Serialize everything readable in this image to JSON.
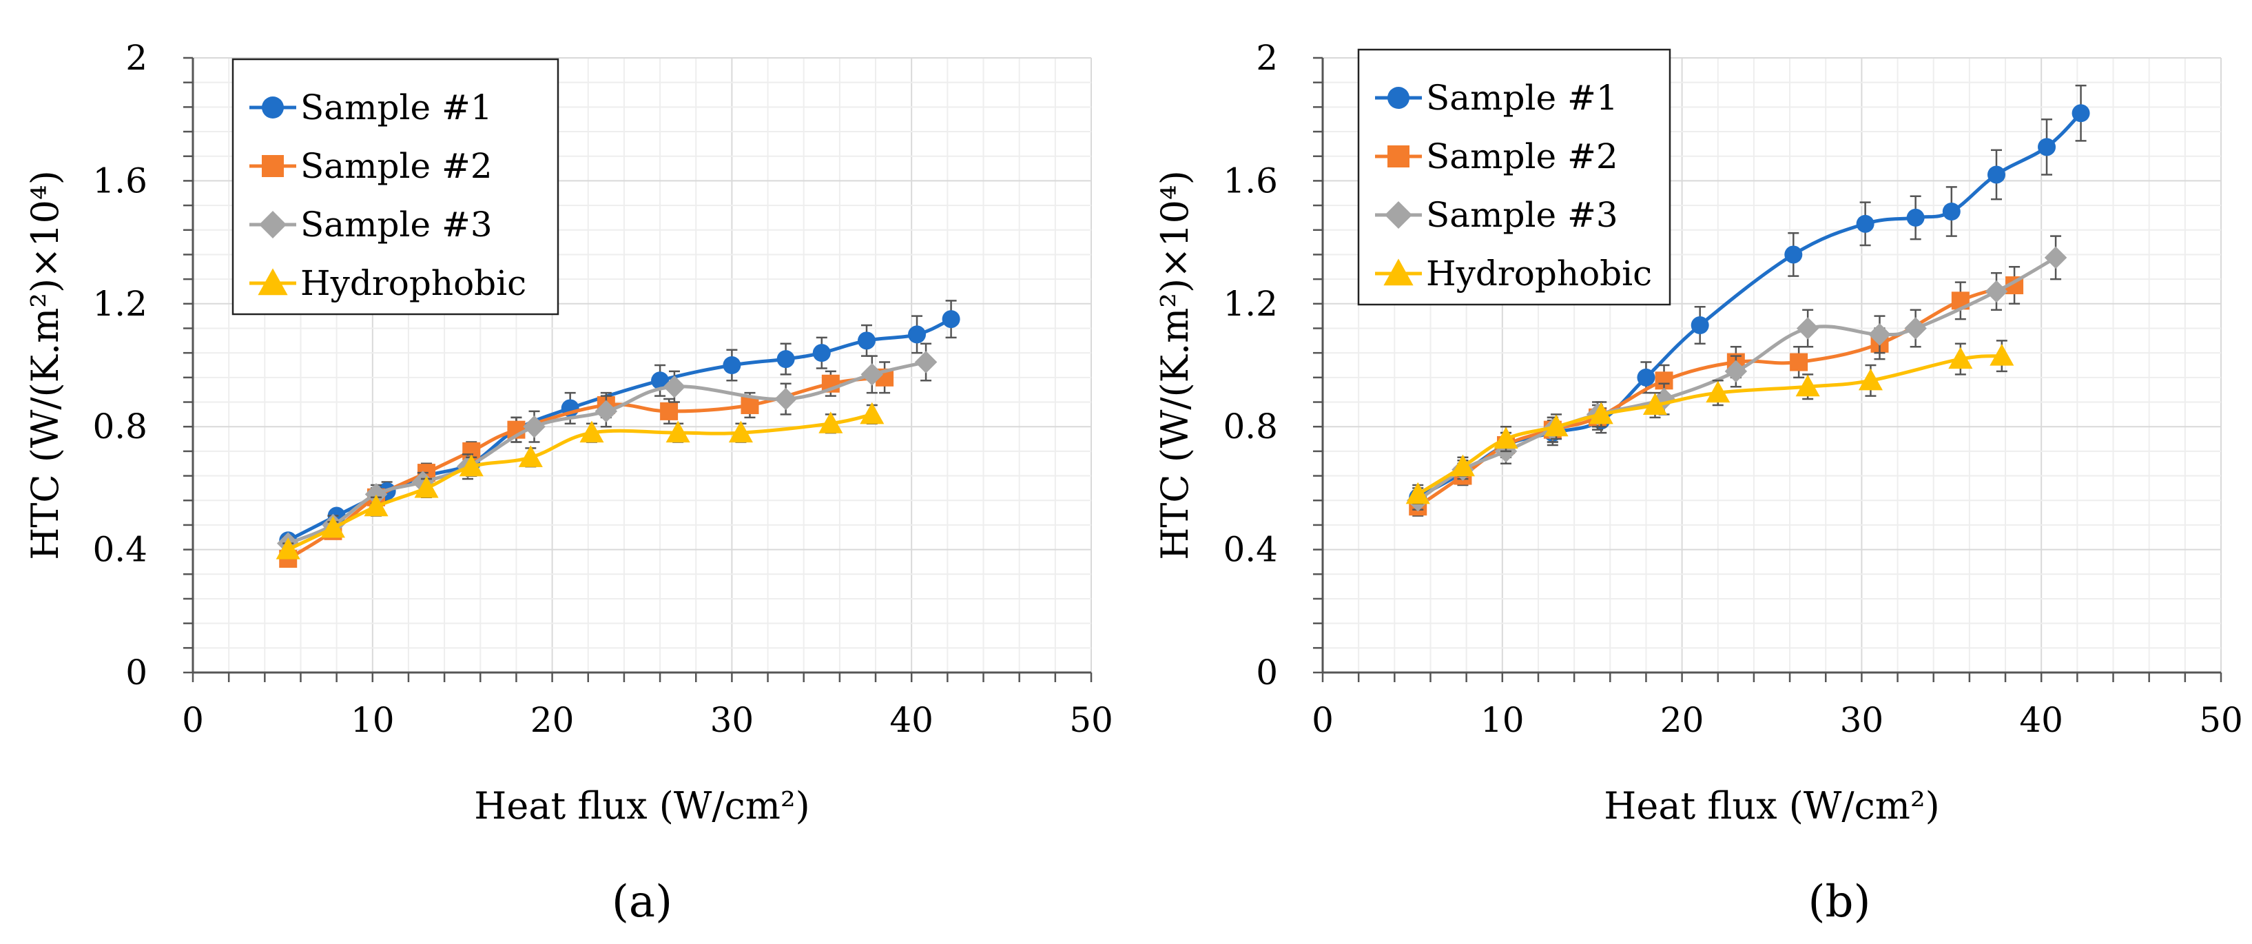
{
  "chart_data": [
    {
      "type": "line",
      "panel_label": "(a)",
      "xlabel": "Heat flux (W/cm²)",
      "ylabel": "HTC (W/(K.m²)×10⁴)",
      "xlim": [
        0,
        50
      ],
      "ylim": [
        0,
        2
      ],
      "xticks": [
        "0",
        "10",
        "20",
        "30",
        "40",
        "50"
      ],
      "yticks": [
        "0",
        "0.4",
        "0.8",
        "1.2",
        "1.6",
        "2"
      ],
      "legend_position": "top-left",
      "series": [
        {
          "name": "Sample #1",
          "color": "#1f6fc8",
          "marker": "circle",
          "x": [
            5.3,
            8.0,
            10.8,
            13.0,
            15.5,
            18.0,
            21.0,
            26.0,
            30.0,
            33.0,
            35.0,
            37.5,
            40.3,
            42.2
          ],
          "y": [
            0.43,
            0.51,
            0.59,
            0.64,
            0.68,
            0.79,
            0.86,
            0.95,
            1.0,
            1.02,
            1.04,
            1.08,
            1.1,
            1.15
          ],
          "err": [
            0.02,
            0.02,
            0.03,
            0.03,
            0.04,
            0.04,
            0.05,
            0.05,
            0.05,
            0.05,
            0.05,
            0.05,
            0.06,
            0.06
          ]
        },
        {
          "name": "Sample #2",
          "color": "#f47c2c",
          "marker": "square",
          "x": [
            5.3,
            7.8,
            10.2,
            13.0,
            15.5,
            18.0,
            23.0,
            26.5,
            31.0,
            35.5,
            38.5
          ],
          "y": [
            0.37,
            0.46,
            0.57,
            0.65,
            0.72,
            0.79,
            0.87,
            0.85,
            0.87,
            0.94,
            0.96
          ],
          "err": [
            0.02,
            0.02,
            0.03,
            0.03,
            0.03,
            0.04,
            0.04,
            0.04,
            0.04,
            0.04,
            0.05
          ]
        },
        {
          "name": "Sample #3",
          "color": "#a5a5a5",
          "marker": "diamond",
          "x": [
            5.3,
            7.8,
            10.2,
            12.8,
            15.3,
            19.0,
            23.0,
            26.8,
            33.0,
            37.8,
            40.8
          ],
          "y": [
            0.42,
            0.48,
            0.58,
            0.62,
            0.67,
            0.8,
            0.85,
            0.93,
            0.89,
            0.97,
            1.01
          ],
          "err": [
            0.02,
            0.03,
            0.03,
            0.03,
            0.04,
            0.05,
            0.05,
            0.05,
            0.05,
            0.06,
            0.06
          ]
        },
        {
          "name": "Hydrophobic",
          "color": "#ffc000",
          "marker": "triangle",
          "x": [
            5.3,
            7.8,
            10.2,
            13.0,
            15.5,
            18.8,
            22.2,
            27.0,
            30.5,
            35.5,
            37.8
          ],
          "y": [
            0.4,
            0.47,
            0.54,
            0.6,
            0.67,
            0.7,
            0.78,
            0.78,
            0.78,
            0.81,
            0.84
          ],
          "err": [
            0.02,
            0.02,
            0.03,
            0.03,
            0.03,
            0.03,
            0.03,
            0.03,
            0.03,
            0.03,
            0.03
          ]
        }
      ]
    },
    {
      "type": "line",
      "panel_label": "(b)",
      "xlabel": "Heat flux (W/cm²)",
      "ylabel": "HTC (W/(K.m²)×10⁴)",
      "xlim": [
        0,
        50
      ],
      "ylim": [
        0,
        2
      ],
      "xticks": [
        "0",
        "10",
        "20",
        "30",
        "40",
        "50"
      ],
      "yticks": [
        "0",
        "0.4",
        "0.8",
        "1.2",
        "1.6",
        "2"
      ],
      "legend_position": "top-left",
      "series": [
        {
          "name": "Sample #1",
          "color": "#1f6fc8",
          "marker": "circle",
          "x": [
            5.3,
            7.8,
            10.2,
            12.8,
            15.5,
            18.0,
            21.0,
            26.2,
            30.2,
            33.0,
            35.0,
            37.5,
            40.3,
            42.2
          ],
          "y": [
            0.57,
            0.65,
            0.74,
            0.78,
            0.82,
            0.96,
            1.13,
            1.36,
            1.46,
            1.48,
            1.5,
            1.62,
            1.71,
            1.82
          ],
          "err": [
            0.03,
            0.03,
            0.04,
            0.04,
            0.04,
            0.05,
            0.06,
            0.07,
            0.07,
            0.07,
            0.08,
            0.08,
            0.09,
            0.09
          ]
        },
        {
          "name": "Sample #2",
          "color": "#f47c2c",
          "marker": "square",
          "x": [
            5.3,
            7.8,
            10.2,
            12.8,
            15.3,
            19.0,
            23.0,
            26.5,
            31.0,
            35.5,
            38.5
          ],
          "y": [
            0.54,
            0.64,
            0.74,
            0.79,
            0.83,
            0.95,
            1.01,
            1.01,
            1.07,
            1.21,
            1.26
          ],
          "err": [
            0.03,
            0.03,
            0.04,
            0.04,
            0.04,
            0.05,
            0.05,
            0.05,
            0.05,
            0.06,
            0.06
          ]
        },
        {
          "name": "Sample #3",
          "color": "#a5a5a5",
          "marker": "diamond",
          "x": [
            5.3,
            7.8,
            10.2,
            12.8,
            15.3,
            19.0,
            23.0,
            27.0,
            31.0,
            33.0,
            37.5,
            40.8
          ],
          "y": [
            0.56,
            0.66,
            0.72,
            0.79,
            0.84,
            0.89,
            0.98,
            1.12,
            1.1,
            1.12,
            1.24,
            1.35
          ],
          "err": [
            0.03,
            0.03,
            0.04,
            0.04,
            0.04,
            0.05,
            0.05,
            0.06,
            0.06,
            0.06,
            0.06,
            0.07
          ]
        },
        {
          "name": "Hydrophobic",
          "color": "#ffc000",
          "marker": "triangle",
          "x": [
            5.3,
            7.8,
            10.2,
            13.0,
            15.5,
            18.5,
            22.0,
            27.0,
            30.5,
            35.5,
            37.8
          ],
          "y": [
            0.58,
            0.67,
            0.76,
            0.8,
            0.84,
            0.87,
            0.91,
            0.93,
            0.95,
            1.02,
            1.03
          ],
          "err": [
            0.03,
            0.03,
            0.04,
            0.04,
            0.04,
            0.04,
            0.04,
            0.04,
            0.05,
            0.05,
            0.05
          ]
        }
      ]
    }
  ]
}
